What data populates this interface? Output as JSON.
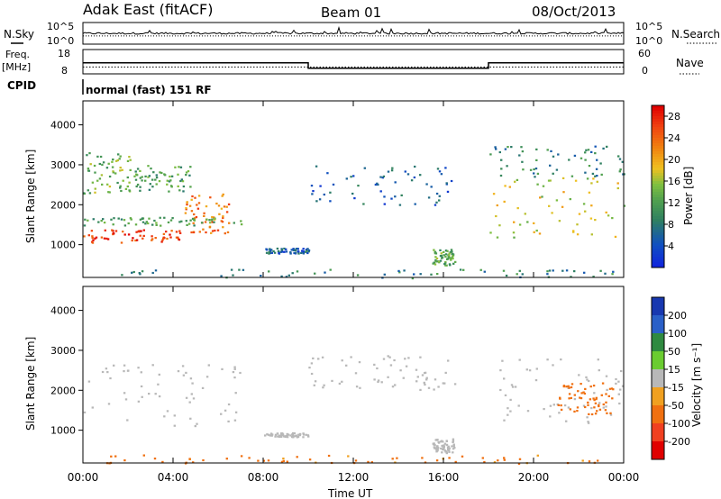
{
  "header": {
    "station": "Adak East (fitACF)",
    "beam": "Beam 01",
    "date": "08/Oct/2013"
  },
  "panel_labels": {
    "nsky": "N.Sky",
    "nsearch": "N.Search",
    "freq_line1": "Freq.",
    "freq_line2": "[MHz]",
    "nave": "Nave",
    "cpid": "CPID",
    "program": "normal (fast) 151 RF"
  },
  "chart_data": [
    {
      "type": "line",
      "name": "noise",
      "y_left_ticks": [
        "10^5",
        "10^0"
      ],
      "y_right_ticks": [
        "10^5",
        "10^0"
      ],
      "x": [
        "00:00",
        "04:00",
        "08:00",
        "12:00",
        "16:00",
        "20:00",
        "00:00"
      ],
      "noise_level_left": 2.5,
      "noise_level_right": 2.5
    },
    {
      "type": "line",
      "name": "frequency",
      "y_left_ticks": [
        "18",
        "8"
      ],
      "y_right_ticks": [
        "60",
        "0"
      ],
      "freq_hours": [
        0,
        10,
        10,
        18,
        18,
        24
      ],
      "freq_mhz": [
        12.5,
        12.5,
        10.3,
        10.3,
        12.5,
        12.5
      ],
      "nave_level": 17,
      "nave_range": [
        0,
        60
      ],
      "freq_range": [
        8,
        18
      ]
    },
    {
      "type": "heatmap",
      "quantity": "power",
      "ylabel": "Slant Range [km]",
      "yticks": [
        1000,
        2000,
        3000,
        4000
      ],
      "ylim": [
        180,
        4600
      ],
      "xlim_hours": [
        0,
        24
      ],
      "colorbar_label": "Power [dB]",
      "colorbar_ticks": [
        4,
        8,
        12,
        16,
        20,
        24,
        28
      ],
      "colorbar_range": [
        0,
        30
      ],
      "colors": {
        "low": "#1030e0",
        "mid": "#f0c020",
        "high": "#e01010"
      },
      "scatter_regions": [
        {
          "t": [
            0.0,
            2.2
          ],
          "r": [
            2300,
            3400
          ],
          "v": 14
        },
        {
          "t": [
            2.2,
            4.8
          ],
          "r": [
            2350,
            3000
          ],
          "v": 12
        },
        {
          "t": [
            0.0,
            4.5
          ],
          "r": [
            1050,
            1400
          ],
          "v": 27
        },
        {
          "t": [
            4.5,
            6.5
          ],
          "r": [
            1300,
            2300
          ],
          "v": 23
        },
        {
          "t": [
            0.0,
            7.0
          ],
          "r": [
            1500,
            1700
          ],
          "v": 12
        },
        {
          "t": [
            8.0,
            10.0
          ],
          "r": [
            800,
            930
          ],
          "v": 6
        },
        {
          "t": [
            10.0,
            16.5
          ],
          "r": [
            2000,
            3000
          ],
          "v": 6
        },
        {
          "t": [
            15.5,
            16.5
          ],
          "r": [
            500,
            900
          ],
          "v": 13
        },
        {
          "t": [
            18.0,
            24.0
          ],
          "r": [
            1200,
            2700
          ],
          "v": 17
        },
        {
          "t": [
            18.0,
            24.0
          ],
          "r": [
            2700,
            3500
          ],
          "v": 9
        },
        {
          "t": [
            0.0,
            24.0
          ],
          "r": [
            180,
            400
          ],
          "v": 9
        }
      ]
    },
    {
      "type": "heatmap",
      "quantity": "velocity",
      "ylabel": "Slant Range [km]",
      "yticks": [
        1000,
        2000,
        3000,
        4000
      ],
      "ylim": [
        180,
        4600
      ],
      "xlim_hours": [
        0,
        24
      ],
      "xticks": [
        "00:00",
        "04:00",
        "08:00",
        "12:00",
        "16:00",
        "20:00",
        "00:00"
      ],
      "xlabel": "Time UT",
      "colorbar_label": "Velocity [m s⁻¹]",
      "colorbar_ticks": [
        "200",
        "100",
        "50",
        "15",
        "-15",
        "-50",
        "-100",
        "-200"
      ],
      "colors": {
        "pos": "#1040c0",
        "ground": "#b8b8b8",
        "neg": "#e02020"
      },
      "scatter_regions": [
        {
          "t": [
            0.0,
            7.0
          ],
          "r": [
            1100,
            2700
          ],
          "v": 0
        },
        {
          "t": [
            8.0,
            10.0
          ],
          "r": [
            850,
            950
          ],
          "v": 0
        },
        {
          "t": [
            10.0,
            16.5
          ],
          "r": [
            2000,
            2900
          ],
          "v": 0
        },
        {
          "t": [
            15.5,
            16.5
          ],
          "r": [
            450,
            800
          ],
          "v": 0
        },
        {
          "t": [
            18.0,
            24.0
          ],
          "r": [
            1200,
            2800
          ],
          "v": 0
        },
        {
          "t": [
            21.0,
            23.5
          ],
          "r": [
            1400,
            2200
          ],
          "v": -60
        },
        {
          "t": [
            0.0,
            24.0
          ],
          "r": [
            180,
            400
          ],
          "v": -40
        }
      ]
    }
  ]
}
